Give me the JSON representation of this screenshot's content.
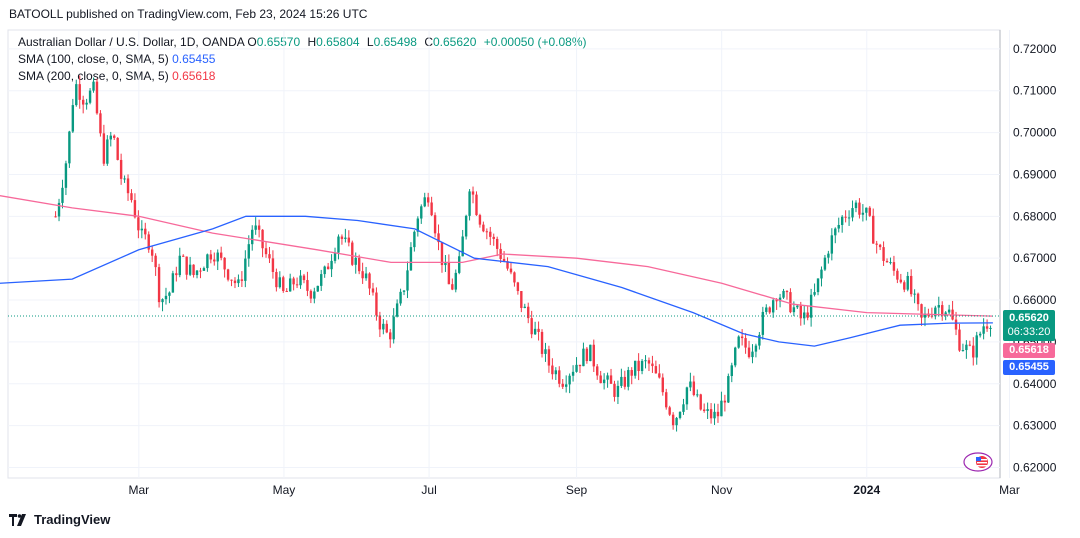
{
  "publisher": "BATOOLL published on TradingView.com, Feb 23, 2024 15:26 UTC",
  "legend": {
    "symbol": "Australian Dollar / U.S. Dollar, 1D, OANDA",
    "open_label": "O",
    "open": "0.65570",
    "high_label": "H",
    "high": "0.65804",
    "low_label": "L",
    "low": "0.65498",
    "close_label": "C",
    "close": "0.65620",
    "change": "+0.00050 (+0.08%)",
    "sma100_label": "SMA (100, close, 0, SMA, 5)",
    "sma100_value": "0.65455",
    "sma200_label": "SMA (200, close, 0, SMA, 5)",
    "sma200_value": "0.65618"
  },
  "price_tag": {
    "price": "0.65620",
    "countdown": "06:33:20"
  },
  "sma200_tag": "0.65618",
  "sma100_tag": "0.65455",
  "footer_brand": "TradingView",
  "colors": {
    "up": "#089981",
    "down": "#f23645",
    "sma100": "#2962ff",
    "sma200": "#f7699a"
  },
  "chart_data": {
    "type": "candlestick",
    "instrument": "AUDUSD",
    "timeframe": "1D",
    "y_ticks": [
      "0.72000",
      "0.71000",
      "0.70000",
      "0.69000",
      "0.68000",
      "0.67000",
      "0.66000",
      "0.65000",
      "0.64000",
      "0.63000",
      "0.62000"
    ],
    "x_ticks": [
      "Mar",
      "May",
      "Jul",
      "Sep",
      "Nov",
      "2024",
      "Mar"
    ],
    "ylim": [
      0.6175,
      0.7245
    ],
    "price_path": [
      [
        "2023-01-25",
        0.68
      ],
      [
        "2023-01-30",
        0.695
      ],
      [
        "2023-02-02",
        0.712
      ],
      [
        "2023-02-06",
        0.708
      ],
      [
        "2023-02-10",
        0.71
      ],
      [
        "2023-02-14",
        0.694
      ],
      [
        "2023-02-18",
        0.7
      ],
      [
        "2023-02-22",
        0.688
      ],
      [
        "2023-02-26",
        0.684
      ],
      [
        "2023-03-02",
        0.675
      ],
      [
        "2023-03-06",
        0.674
      ],
      [
        "2023-03-10",
        0.66
      ],
      [
        "2023-03-14",
        0.662
      ],
      [
        "2023-03-18",
        0.67
      ],
      [
        "2023-03-24",
        0.666
      ],
      [
        "2023-04-01",
        0.672
      ],
      [
        "2023-04-06",
        0.668
      ],
      [
        "2023-04-12",
        0.663
      ],
      [
        "2023-04-18",
        0.678
      ],
      [
        "2023-04-24",
        0.67
      ],
      [
        "2023-05-01",
        0.661
      ],
      [
        "2023-05-06",
        0.665
      ],
      [
        "2023-05-12",
        0.662
      ],
      [
        "2023-05-18",
        0.666
      ],
      [
        "2023-05-24",
        0.676
      ],
      [
        "2023-05-30",
        0.67
      ],
      [
        "2023-06-04",
        0.666
      ],
      [
        "2023-06-10",
        0.655
      ],
      [
        "2023-06-14",
        0.651
      ],
      [
        "2023-06-20",
        0.662
      ],
      [
        "2023-06-26",
        0.68
      ],
      [
        "2023-07-01",
        0.686
      ],
      [
        "2023-07-05",
        0.673
      ],
      [
        "2023-07-10",
        0.662
      ],
      [
        "2023-07-14",
        0.669
      ],
      [
        "2023-07-18",
        0.688
      ],
      [
        "2023-07-22",
        0.68
      ],
      [
        "2023-07-28",
        0.674
      ],
      [
        "2023-08-02",
        0.669
      ],
      [
        "2023-08-08",
        0.66
      ],
      [
        "2023-08-14",
        0.653
      ],
      [
        "2023-08-20",
        0.645
      ],
      [
        "2023-08-26",
        0.641
      ],
      [
        "2023-09-01",
        0.645
      ],
      [
        "2023-09-06",
        0.648
      ],
      [
        "2023-09-12",
        0.641
      ],
      [
        "2023-09-18",
        0.638
      ],
      [
        "2023-09-24",
        0.643
      ],
      [
        "2023-10-01",
        0.645
      ],
      [
        "2023-10-06",
        0.64
      ],
      [
        "2023-10-12",
        0.631
      ],
      [
        "2023-10-18",
        0.64
      ],
      [
        "2023-10-24",
        0.633
      ],
      [
        "2023-10-30",
        0.632
      ],
      [
        "2023-11-04",
        0.64
      ],
      [
        "2023-11-08",
        0.65
      ],
      [
        "2023-11-13",
        0.648
      ],
      [
        "2023-11-18",
        0.655
      ],
      [
        "2023-11-24",
        0.662
      ],
      [
        "2023-11-30",
        0.659
      ],
      [
        "2023-12-05",
        0.655
      ],
      [
        "2023-12-10",
        0.661
      ],
      [
        "2023-12-16",
        0.673
      ],
      [
        "2023-12-22",
        0.68
      ],
      [
        "2023-12-27",
        0.683
      ],
      [
        "2024-01-01",
        0.68
      ],
      [
        "2024-01-06",
        0.672
      ],
      [
        "2024-01-12",
        0.667
      ],
      [
        "2024-01-18",
        0.664
      ],
      [
        "2024-01-24",
        0.655
      ],
      [
        "2024-01-30",
        0.659
      ],
      [
        "2024-02-04",
        0.658
      ],
      [
        "2024-02-09",
        0.65
      ],
      [
        "2024-02-14",
        0.647
      ],
      [
        "2024-02-19",
        0.654
      ],
      [
        "2024-02-23",
        0.656
      ]
    ],
    "sma100_path": [
      [
        "2023-01-01",
        0.664
      ],
      [
        "2023-02-01",
        0.665
      ],
      [
        "2023-03-01",
        0.672
      ],
      [
        "2023-04-01",
        0.677
      ],
      [
        "2023-04-15",
        0.68
      ],
      [
        "2023-05-10",
        0.68
      ],
      [
        "2023-06-01",
        0.679
      ],
      [
        "2023-06-25",
        0.677
      ],
      [
        "2023-07-20",
        0.67
      ],
      [
        "2023-08-20",
        0.668
      ],
      [
        "2023-09-20",
        0.663
      ],
      [
        "2023-10-20",
        0.657
      ],
      [
        "2023-11-10",
        0.652
      ],
      [
        "2023-11-25",
        0.65
      ],
      [
        "2023-12-10",
        0.649
      ],
      [
        "2023-12-25",
        0.651
      ],
      [
        "2024-01-15",
        0.654
      ],
      [
        "2024-02-05",
        0.6545
      ],
      [
        "2024-02-23",
        0.65455
      ]
    ],
    "sma200_path": [
      [
        "2023-01-01",
        0.685
      ],
      [
        "2023-02-01",
        0.682
      ],
      [
        "2023-03-01",
        0.68
      ],
      [
        "2023-04-01",
        0.676
      ],
      [
        "2023-05-15",
        0.672
      ],
      [
        "2023-06-15",
        0.669
      ],
      [
        "2023-07-15",
        0.669
      ],
      [
        "2023-08-01",
        0.671
      ],
      [
        "2023-09-01",
        0.67
      ],
      [
        "2023-10-01",
        0.668
      ],
      [
        "2023-11-01",
        0.664
      ],
      [
        "2023-12-01",
        0.659
      ],
      [
        "2024-01-01",
        0.657
      ],
      [
        "2024-02-23",
        0.65618
      ]
    ],
    "last_close": 0.6562,
    "sma100_last": 0.65455,
    "sma200_last": 0.65618
  }
}
